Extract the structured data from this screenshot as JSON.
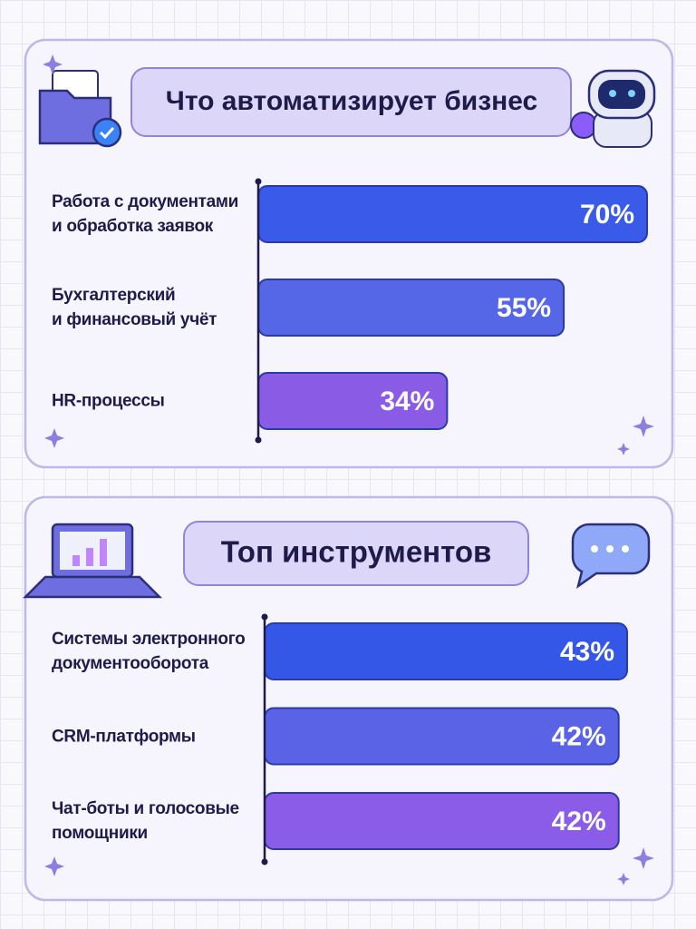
{
  "chart_data": [
    {
      "type": "bar",
      "orientation": "horizontal",
      "title": "Что автоматизирует бизнес",
      "categories": [
        "Работа с документами\nи обработка заявок",
        "Бухгалтерский\nи финансовый учёт",
        "HR-процессы"
      ],
      "values": [
        70,
        55,
        34
      ],
      "value_labels": [
        "70%",
        "55%",
        "34%"
      ],
      "colors": [
        "#3a5ae9",
        "#5566e6",
        "#8a5ce6"
      ],
      "xlim": [
        0,
        70
      ]
    },
    {
      "type": "bar",
      "orientation": "horizontal",
      "title": "Топ инструментов",
      "categories": [
        "Системы электронного\nдокументооборота",
        "CRM-платформы",
        "Чат-боты и голосовые\nпомощники"
      ],
      "values": [
        43,
        42,
        42
      ],
      "value_labels": [
        "43%",
        "42%",
        "42%"
      ],
      "colors": [
        "#3557e8",
        "#5a62e6",
        "#8a5ce8"
      ],
      "xlim": [
        0,
        43
      ]
    }
  ]
}
